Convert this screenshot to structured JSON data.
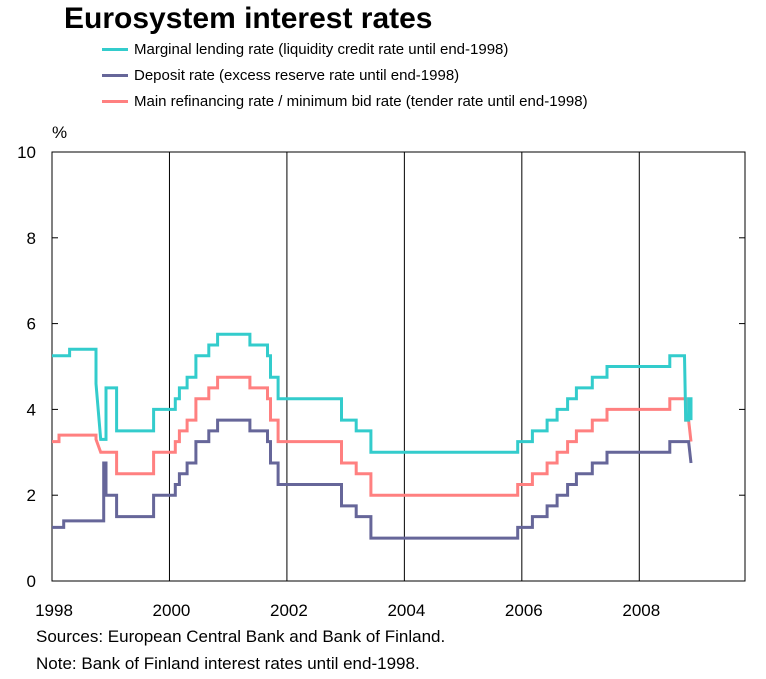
{
  "chart_data": {
    "type": "line",
    "title": "Eurosystem interest rates",
    "ylabel": "%",
    "xlabel": "",
    "ylim": [
      0,
      10
    ],
    "xlim": [
      1998.0,
      2009.8
    ],
    "yticks": [
      0,
      2,
      4,
      6,
      8,
      10
    ],
    "xticks": [
      1998,
      2000,
      2002,
      2004,
      2006,
      2008
    ],
    "grid": "vertical at even years",
    "legend_position": "top",
    "series": [
      {
        "name": "Marginal lending rate (liquidity credit rate until end-1998)",
        "color": "#33cccc",
        "points": [
          [
            1998.0,
            5.25
          ],
          [
            1998.3,
            5.25
          ],
          [
            1998.3,
            5.4
          ],
          [
            1998.75,
            5.4
          ],
          [
            1998.75,
            4.6
          ],
          [
            1998.83,
            3.3
          ],
          [
            1998.92,
            3.3
          ],
          [
            1998.92,
            4.5
          ],
          [
            1999.1,
            4.5
          ],
          [
            1999.1,
            3.5
          ],
          [
            1999.73,
            3.5
          ],
          [
            1999.73,
            4.0
          ],
          [
            2000.1,
            4.0
          ],
          [
            2000.1,
            4.25
          ],
          [
            2000.17,
            4.25
          ],
          [
            2000.17,
            4.5
          ],
          [
            2000.3,
            4.5
          ],
          [
            2000.3,
            4.75
          ],
          [
            2000.45,
            4.75
          ],
          [
            2000.45,
            5.25
          ],
          [
            2000.67,
            5.25
          ],
          [
            2000.67,
            5.5
          ],
          [
            2000.82,
            5.5
          ],
          [
            2000.82,
            5.75
          ],
          [
            2001.37,
            5.75
          ],
          [
            2001.37,
            5.5
          ],
          [
            2001.67,
            5.5
          ],
          [
            2001.67,
            5.25
          ],
          [
            2001.72,
            5.25
          ],
          [
            2001.72,
            4.75
          ],
          [
            2001.85,
            4.75
          ],
          [
            2001.85,
            4.25
          ],
          [
            2002.93,
            4.25
          ],
          [
            2002.93,
            3.75
          ],
          [
            2003.18,
            3.75
          ],
          [
            2003.18,
            3.5
          ],
          [
            2003.43,
            3.5
          ],
          [
            2003.43,
            3.0
          ],
          [
            2005.93,
            3.0
          ],
          [
            2005.93,
            3.25
          ],
          [
            2006.18,
            3.25
          ],
          [
            2006.18,
            3.5
          ],
          [
            2006.43,
            3.5
          ],
          [
            2006.43,
            3.75
          ],
          [
            2006.6,
            3.75
          ],
          [
            2006.6,
            4.0
          ],
          [
            2006.78,
            4.0
          ],
          [
            2006.78,
            4.25
          ],
          [
            2006.93,
            4.25
          ],
          [
            2006.93,
            4.5
          ],
          [
            2007.2,
            4.5
          ],
          [
            2007.2,
            4.75
          ],
          [
            2007.45,
            4.75
          ],
          [
            2007.45,
            5.0
          ],
          [
            2008.52,
            5.0
          ],
          [
            2008.52,
            5.25
          ],
          [
            2008.77,
            5.25
          ],
          [
            2008.79,
            3.75
          ],
          [
            2008.84,
            3.75
          ],
          [
            2008.84,
            4.25
          ],
          [
            2008.88,
            4.25
          ],
          [
            2008.88,
            3.75
          ]
        ]
      },
      {
        "name": "Deposit rate (excess reserve rate until end-1998)",
        "color": "#666699",
        "points": [
          [
            1998.0,
            1.25
          ],
          [
            1998.2,
            1.25
          ],
          [
            1998.2,
            1.4
          ],
          [
            1998.88,
            1.4
          ],
          [
            1998.88,
            2.75
          ],
          [
            1998.92,
            2.75
          ],
          [
            1998.92,
            2.0
          ],
          [
            1999.1,
            2.0
          ],
          [
            1999.1,
            1.5
          ],
          [
            1999.73,
            1.5
          ],
          [
            1999.73,
            2.0
          ],
          [
            2000.1,
            2.0
          ],
          [
            2000.1,
            2.25
          ],
          [
            2000.17,
            2.25
          ],
          [
            2000.17,
            2.5
          ],
          [
            2000.3,
            2.5
          ],
          [
            2000.3,
            2.75
          ],
          [
            2000.45,
            2.75
          ],
          [
            2000.45,
            3.25
          ],
          [
            2000.67,
            3.25
          ],
          [
            2000.67,
            3.5
          ],
          [
            2000.82,
            3.5
          ],
          [
            2000.82,
            3.75
          ],
          [
            2001.37,
            3.75
          ],
          [
            2001.37,
            3.5
          ],
          [
            2001.67,
            3.5
          ],
          [
            2001.67,
            3.25
          ],
          [
            2001.72,
            3.25
          ],
          [
            2001.72,
            2.75
          ],
          [
            2001.85,
            2.75
          ],
          [
            2001.85,
            2.25
          ],
          [
            2002.93,
            2.25
          ],
          [
            2002.93,
            1.75
          ],
          [
            2003.18,
            1.75
          ],
          [
            2003.18,
            1.5
          ],
          [
            2003.43,
            1.5
          ],
          [
            2003.43,
            1.0
          ],
          [
            2005.93,
            1.0
          ],
          [
            2005.93,
            1.25
          ],
          [
            2006.18,
            1.25
          ],
          [
            2006.18,
            1.5
          ],
          [
            2006.43,
            1.5
          ],
          [
            2006.43,
            1.75
          ],
          [
            2006.6,
            1.75
          ],
          [
            2006.6,
            2.0
          ],
          [
            2006.78,
            2.0
          ],
          [
            2006.78,
            2.25
          ],
          [
            2006.93,
            2.25
          ],
          [
            2006.93,
            2.5
          ],
          [
            2007.2,
            2.5
          ],
          [
            2007.2,
            2.75
          ],
          [
            2007.45,
            2.75
          ],
          [
            2007.45,
            3.0
          ],
          [
            2008.52,
            3.0
          ],
          [
            2008.52,
            3.25
          ],
          [
            2008.84,
            3.25
          ],
          [
            2008.88,
            2.75
          ]
        ]
      },
      {
        "name": "Main refinancing rate / minimum bid rate (tender rate until end-1998)",
        "color": "#ff8080",
        "points": [
          [
            1998.0,
            3.25
          ],
          [
            1998.12,
            3.25
          ],
          [
            1998.12,
            3.4
          ],
          [
            1998.75,
            3.4
          ],
          [
            1998.75,
            3.3
          ],
          [
            1998.83,
            3.0
          ],
          [
            1999.1,
            3.0
          ],
          [
            1999.1,
            2.5
          ],
          [
            1999.73,
            2.5
          ],
          [
            1999.73,
            3.0
          ],
          [
            2000.1,
            3.0
          ],
          [
            2000.1,
            3.25
          ],
          [
            2000.17,
            3.25
          ],
          [
            2000.17,
            3.5
          ],
          [
            2000.3,
            3.5
          ],
          [
            2000.3,
            3.75
          ],
          [
            2000.45,
            3.75
          ],
          [
            2000.45,
            4.25
          ],
          [
            2000.67,
            4.25
          ],
          [
            2000.67,
            4.5
          ],
          [
            2000.82,
            4.5
          ],
          [
            2000.82,
            4.75
          ],
          [
            2001.37,
            4.75
          ],
          [
            2001.37,
            4.5
          ],
          [
            2001.67,
            4.5
          ],
          [
            2001.67,
            4.25
          ],
          [
            2001.72,
            4.25
          ],
          [
            2001.72,
            3.75
          ],
          [
            2001.85,
            3.75
          ],
          [
            2001.85,
            3.25
          ],
          [
            2002.93,
            3.25
          ],
          [
            2002.93,
            2.75
          ],
          [
            2003.18,
            2.75
          ],
          [
            2003.18,
            2.5
          ],
          [
            2003.43,
            2.5
          ],
          [
            2003.43,
            2.0
          ],
          [
            2005.93,
            2.0
          ],
          [
            2005.93,
            2.25
          ],
          [
            2006.18,
            2.25
          ],
          [
            2006.18,
            2.5
          ],
          [
            2006.43,
            2.5
          ],
          [
            2006.43,
            2.75
          ],
          [
            2006.6,
            2.75
          ],
          [
            2006.6,
            3.0
          ],
          [
            2006.78,
            3.0
          ],
          [
            2006.78,
            3.25
          ],
          [
            2006.93,
            3.25
          ],
          [
            2006.93,
            3.5
          ],
          [
            2007.2,
            3.5
          ],
          [
            2007.2,
            3.75
          ],
          [
            2007.45,
            3.75
          ],
          [
            2007.45,
            4.0
          ],
          [
            2008.52,
            4.0
          ],
          [
            2008.52,
            4.25
          ],
          [
            2008.79,
            4.25
          ],
          [
            2008.79,
            3.75
          ],
          [
            2008.84,
            3.75
          ],
          [
            2008.88,
            3.25
          ]
        ]
      }
    ],
    "footnotes": [
      "Sources: European Central Bank and Bank of Finland.",
      "Note: Bank of Finland interest rates until end-1998."
    ]
  }
}
